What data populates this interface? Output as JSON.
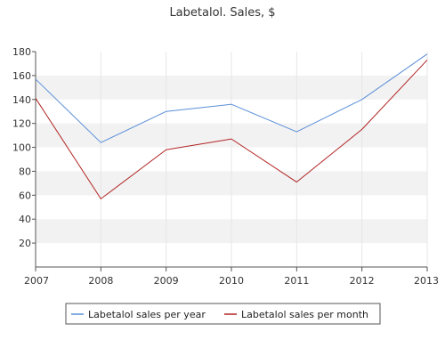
{
  "chart_data": {
    "type": "line",
    "title": "Labetalol. Sales, $",
    "xlabel": "",
    "ylabel": "",
    "categories": [
      "2007",
      "2008",
      "2009",
      "2010",
      "2011",
      "2012",
      "2013"
    ],
    "ylim": [
      0,
      180
    ],
    "yticks": [
      20,
      40,
      60,
      80,
      100,
      120,
      140,
      160,
      180
    ],
    "ytick_labels": [
      "20",
      "40",
      "60",
      "80",
      "100",
      "120",
      "140",
      "160",
      "180"
    ],
    "grid": "horizontal bands",
    "legend_position": "bottom",
    "series": [
      {
        "name": "Labetalol sales per year",
        "color": "#5b8fd8",
        "values": [
          157,
          104,
          130,
          136,
          113,
          140,
          178
        ]
      },
      {
        "name": "Labetalol sales per month",
        "color": "#b22222",
        "values": [
          141,
          57,
          98,
          107,
          71,
          115,
          173
        ]
      }
    ],
    "colors": {
      "band": "#f2f2f2",
      "axis": "#555555",
      "gridline": "#e6e6e6"
    }
  }
}
